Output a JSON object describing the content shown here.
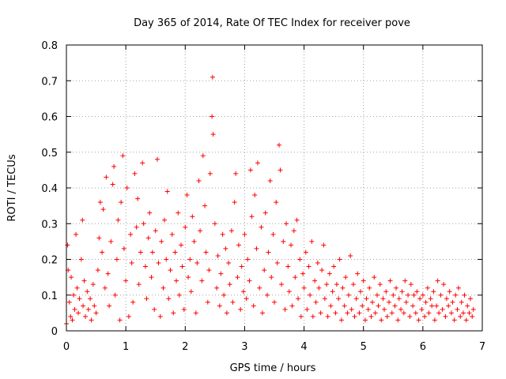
{
  "chart_data": {
    "type": "scatter",
    "title": "Day 365 of 2014, Rate Of TEC Index for receiver pove",
    "xlabel": "GPS time / hours",
    "ylabel": "ROTI / TECUs",
    "xlim": [
      0,
      7
    ],
    "ylim": [
      0,
      0.8
    ],
    "xticks": [
      0,
      1,
      2,
      3,
      4,
      5,
      6,
      7
    ],
    "xtick_labels": [
      "0",
      "1",
      "2",
      "3",
      "4",
      "5",
      "6",
      "7"
    ],
    "yticks": [
      0,
      0.1,
      0.2,
      0.3,
      0.4,
      0.5,
      0.6,
      0.7,
      0.8
    ],
    "ytick_labels": [
      "0",
      "0.1",
      "0.2",
      "0.3",
      "0.4",
      "0.5",
      "0.6",
      "0.7",
      "0.8"
    ],
    "grid": true,
    "marker": "plus",
    "color": "#ff0000",
    "series": [
      {
        "name": "ROTI",
        "points": [
          [
            0.0,
            0.02
          ],
          [
            0.02,
            0.24
          ],
          [
            0.03,
            0.17
          ],
          [
            0.05,
            0.08
          ],
          [
            0.07,
            0.04
          ],
          [
            0.08,
            0.15
          ],
          [
            0.1,
            0.03
          ],
          [
            0.12,
            0.1
          ],
          [
            0.14,
            0.06
          ],
          [
            0.16,
            0.27
          ],
          [
            0.18,
            0.12
          ],
          [
            0.2,
            0.05
          ],
          [
            0.22,
            0.09
          ],
          [
            0.25,
            0.2
          ],
          [
            0.27,
            0.31
          ],
          [
            0.28,
            0.07
          ],
          [
            0.3,
            0.14
          ],
          [
            0.32,
            0.04
          ],
          [
            0.35,
            0.11
          ],
          [
            0.37,
            0.06
          ],
          [
            0.4,
            0.09
          ],
          [
            0.42,
            0.03
          ],
          [
            0.45,
            0.13
          ],
          [
            0.47,
            0.07
          ],
          [
            0.5,
            0.05
          ],
          [
            0.53,
            0.17
          ],
          [
            0.55,
            0.26
          ],
          [
            0.57,
            0.36
          ],
          [
            0.6,
            0.22
          ],
          [
            0.62,
            0.34
          ],
          [
            0.65,
            0.12
          ],
          [
            0.67,
            0.43
          ],
          [
            0.7,
            0.16
          ],
          [
            0.72,
            0.07
          ],
          [
            0.75,
            0.25
          ],
          [
            0.78,
            0.41
          ],
          [
            0.8,
            0.46
          ],
          [
            0.82,
            0.1
          ],
          [
            0.85,
            0.2
          ],
          [
            0.87,
            0.31
          ],
          [
            0.9,
            0.03
          ],
          [
            0.92,
            0.36
          ],
          [
            0.95,
            0.49
          ],
          [
            0.97,
            0.23
          ],
          [
            1.0,
            0.14
          ],
          [
            1.02,
            0.4
          ],
          [
            1.05,
            0.04
          ],
          [
            1.08,
            0.27
          ],
          [
            1.1,
            0.19
          ],
          [
            1.12,
            0.08
          ],
          [
            1.15,
            0.44
          ],
          [
            1.18,
            0.29
          ],
          [
            1.2,
            0.37
          ],
          [
            1.22,
            0.13
          ],
          [
            1.25,
            0.22
          ],
          [
            1.28,
            0.47
          ],
          [
            1.3,
            0.3
          ],
          [
            1.33,
            0.18
          ],
          [
            1.35,
            0.09
          ],
          [
            1.38,
            0.26
          ],
          [
            1.4,
            0.33
          ],
          [
            1.43,
            0.15
          ],
          [
            1.45,
            0.22
          ],
          [
            1.48,
            0.06
          ],
          [
            1.5,
            0.28
          ],
          [
            1.53,
            0.48
          ],
          [
            1.55,
            0.19
          ],
          [
            1.58,
            0.04
          ],
          [
            1.6,
            0.25
          ],
          [
            1.63,
            0.12
          ],
          [
            1.65,
            0.31
          ],
          [
            1.68,
            0.2
          ],
          [
            1.7,
            0.39
          ],
          [
            1.72,
            0.09
          ],
          [
            1.75,
            0.17
          ],
          [
            1.78,
            0.27
          ],
          [
            1.8,
            0.05
          ],
          [
            1.83,
            0.22
          ],
          [
            1.85,
            0.14
          ],
          [
            1.88,
            0.33
          ],
          [
            1.9,
            0.1
          ],
          [
            1.93,
            0.24
          ],
          [
            1.95,
            0.18
          ],
          [
            1.98,
            0.06
          ],
          [
            2.0,
            0.29
          ],
          [
            2.03,
            0.38
          ],
          [
            2.05,
            0.15
          ],
          [
            2.08,
            0.2
          ],
          [
            2.1,
            0.11
          ],
          [
            2.12,
            0.32
          ],
          [
            2.15,
            0.25
          ],
          [
            2.18,
            0.05
          ],
          [
            2.2,
            0.19
          ],
          [
            2.23,
            0.42
          ],
          [
            2.25,
            0.28
          ],
          [
            2.28,
            0.14
          ],
          [
            2.3,
            0.49
          ],
          [
            2.33,
            0.35
          ],
          [
            2.35,
            0.22
          ],
          [
            2.38,
            0.08
          ],
          [
            2.4,
            0.17
          ],
          [
            2.42,
            0.44
          ],
          [
            2.45,
            0.6
          ],
          [
            2.46,
            0.71
          ],
          [
            2.47,
            0.55
          ],
          [
            2.5,
            0.3
          ],
          [
            2.53,
            0.12
          ],
          [
            2.55,
            0.21
          ],
          [
            2.58,
            0.07
          ],
          [
            2.6,
            0.16
          ],
          [
            2.63,
            0.27
          ],
          [
            2.65,
            0.1
          ],
          [
            2.68,
            0.23
          ],
          [
            2.7,
            0.05
          ],
          [
            2.73,
            0.19
          ],
          [
            2.75,
            0.13
          ],
          [
            2.78,
            0.28
          ],
          [
            2.8,
            0.08
          ],
          [
            2.83,
            0.36
          ],
          [
            2.85,
            0.44
          ],
          [
            2.88,
            0.15
          ],
          [
            2.9,
            0.24
          ],
          [
            2.93,
            0.06
          ],
          [
            2.95,
            0.18
          ],
          [
            2.98,
            0.11
          ],
          [
            3.0,
            0.27
          ],
          [
            3.03,
            0.09
          ],
          [
            3.05,
            0.2
          ],
          [
            3.08,
            0.14
          ],
          [
            3.1,
            0.45
          ],
          [
            3.12,
            0.32
          ],
          [
            3.15,
            0.07
          ],
          [
            3.17,
            0.38
          ],
          [
            3.2,
            0.23
          ],
          [
            3.22,
            0.47
          ],
          [
            3.25,
            0.12
          ],
          [
            3.28,
            0.29
          ],
          [
            3.3,
            0.05
          ],
          [
            3.33,
            0.17
          ],
          [
            3.35,
            0.33
          ],
          [
            3.38,
            0.1
          ],
          [
            3.4,
            0.22
          ],
          [
            3.43,
            0.42
          ],
          [
            3.45,
            0.15
          ],
          [
            3.48,
            0.27
          ],
          [
            3.5,
            0.08
          ],
          [
            3.53,
            0.36
          ],
          [
            3.55,
            0.19
          ],
          [
            3.58,
            0.52
          ],
          [
            3.6,
            0.45
          ],
          [
            3.62,
            0.13
          ],
          [
            3.65,
            0.25
          ],
          [
            3.68,
            0.06
          ],
          [
            3.7,
            0.3
          ],
          [
            3.73,
            0.18
          ],
          [
            3.75,
            0.11
          ],
          [
            3.78,
            0.24
          ],
          [
            3.8,
            0.07
          ],
          [
            3.83,
            0.28
          ],
          [
            3.85,
            0.15
          ],
          [
            3.88,
            0.31
          ],
          [
            3.9,
            0.09
          ],
          [
            3.93,
            0.2
          ],
          [
            3.95,
            0.04
          ],
          [
            3.98,
            0.16
          ],
          [
            4.0,
            0.12
          ],
          [
            4.03,
            0.22
          ],
          [
            4.05,
            0.06
          ],
          [
            4.08,
            0.18
          ],
          [
            4.1,
            0.1
          ],
          [
            4.13,
            0.25
          ],
          [
            4.15,
            0.04
          ],
          [
            4.18,
            0.14
          ],
          [
            4.2,
            0.08
          ],
          [
            4.23,
            0.19
          ],
          [
            4.25,
            0.12
          ],
          [
            4.28,
            0.05
          ],
          [
            4.3,
            0.17
          ],
          [
            4.33,
            0.24
          ],
          [
            4.35,
            0.09
          ],
          [
            4.38,
            0.13
          ],
          [
            4.4,
            0.04
          ],
          [
            4.43,
            0.16
          ],
          [
            4.45,
            0.07
          ],
          [
            4.48,
            0.11
          ],
          [
            4.5,
            0.18
          ],
          [
            4.53,
            0.05
          ],
          [
            4.55,
            0.13
          ],
          [
            4.58,
            0.09
          ],
          [
            4.6,
            0.2
          ],
          [
            4.63,
            0.03
          ],
          [
            4.65,
            0.12
          ],
          [
            4.68,
            0.07
          ],
          [
            4.7,
            0.15
          ],
          [
            4.73,
            0.05
          ],
          [
            4.75,
            0.1
          ],
          [
            4.78,
            0.21
          ],
          [
            4.8,
            0.06
          ],
          [
            4.83,
            0.13
          ],
          [
            4.85,
            0.04
          ],
          [
            4.88,
            0.09
          ],
          [
            4.9,
            0.16
          ],
          [
            4.93,
            0.05
          ],
          [
            4.95,
            0.11
          ],
          [
            4.98,
            0.07
          ],
          [
            5.0,
            0.14
          ],
          [
            5.03,
            0.03
          ],
          [
            5.05,
            0.09
          ],
          [
            5.08,
            0.06
          ],
          [
            5.1,
            0.12
          ],
          [
            5.13,
            0.04
          ],
          [
            5.15,
            0.08
          ],
          [
            5.18,
            0.15
          ],
          [
            5.2,
            0.05
          ],
          [
            5.23,
            0.1
          ],
          [
            5.25,
            0.07
          ],
          [
            5.28,
            0.13
          ],
          [
            5.3,
            0.03
          ],
          [
            5.33,
            0.09
          ],
          [
            5.35,
            0.06
          ],
          [
            5.38,
            0.11
          ],
          [
            5.4,
            0.04
          ],
          [
            5.43,
            0.08
          ],
          [
            5.45,
            0.14
          ],
          [
            5.48,
            0.05
          ],
          [
            5.5,
            0.1
          ],
          [
            5.53,
            0.07
          ],
          [
            5.55,
            0.12
          ],
          [
            5.58,
            0.03
          ],
          [
            5.6,
            0.09
          ],
          [
            5.63,
            0.06
          ],
          [
            5.65,
            0.11
          ],
          [
            5.68,
            0.05
          ],
          [
            5.7,
            0.14
          ],
          [
            5.72,
            0.08
          ],
          [
            5.75,
            0.1
          ],
          [
            5.78,
            0.04
          ],
          [
            5.8,
            0.13
          ],
          [
            5.83,
            0.07
          ],
          [
            5.85,
            0.1
          ],
          [
            5.88,
            0.05
          ],
          [
            5.9,
            0.11
          ],
          [
            5.93,
            0.03
          ],
          [
            5.95,
            0.09
          ],
          [
            5.98,
            0.06
          ],
          [
            6.0,
            0.1
          ],
          [
            6.03,
            0.04
          ],
          [
            6.05,
            0.08
          ],
          [
            6.08,
            0.12
          ],
          [
            6.1,
            0.05
          ],
          [
            6.13,
            0.09
          ],
          [
            6.15,
            0.07
          ],
          [
            6.18,
            0.11
          ],
          [
            6.2,
            0.03
          ],
          [
            6.23,
            0.07
          ],
          [
            6.25,
            0.14
          ],
          [
            6.27,
            0.05
          ],
          [
            6.3,
            0.1
          ],
          [
            6.33,
            0.06
          ],
          [
            6.35,
            0.13
          ],
          [
            6.38,
            0.04
          ],
          [
            6.4,
            0.09
          ],
          [
            6.43,
            0.07
          ],
          [
            6.45,
            0.11
          ],
          [
            6.48,
            0.05
          ],
          [
            6.5,
            0.08
          ],
          [
            6.53,
            0.03
          ],
          [
            6.55,
            0.1
          ],
          [
            6.58,
            0.06
          ],
          [
            6.6,
            0.12
          ],
          [
            6.63,
            0.04
          ],
          [
            6.65,
            0.08
          ],
          [
            6.68,
            0.05
          ],
          [
            6.7,
            0.1
          ],
          [
            6.73,
            0.03
          ],
          [
            6.75,
            0.07
          ],
          [
            6.78,
            0.05
          ],
          [
            6.8,
            0.09
          ],
          [
            6.83,
            0.04
          ],
          [
            6.85,
            0.06
          ]
        ]
      }
    ]
  }
}
